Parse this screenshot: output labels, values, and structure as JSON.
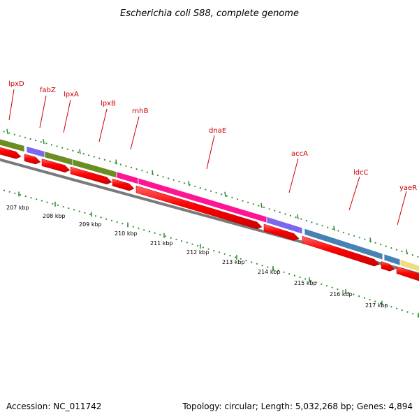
{
  "title": "Escherichia coli S88, complete genome",
  "accession": "Accession: NC_011742",
  "summary": "Topology: circular; Length: 5,032,268 bp; Genes: 4,894",
  "kbp_labels": [
    "207 kbp",
    "208 kbp",
    "209 kbp",
    "210 kbp",
    "211 kbp",
    "212 kbp",
    "213 kbp",
    "214 kbp",
    "215 kbp",
    "216 kbp",
    "217 kbp"
  ],
  "genes": [
    {
      "name": "lpxD",
      "color": "#6b8e23"
    },
    {
      "name": "fabZ",
      "color": "#7b68ee"
    },
    {
      "name": "lpxA",
      "color": "#6b8e23"
    },
    {
      "name": "lpxB",
      "color": "#6b8e23"
    },
    {
      "name": "rnhB",
      "color": "#ff1493"
    },
    {
      "name": "dnaE",
      "color": "#ff1493"
    },
    {
      "name": "accA",
      "color": "#7b68ee"
    },
    {
      "name": "ldcC",
      "color": "#4682b4"
    },
    {
      "name": "yaeR",
      "color": "#eedd82"
    }
  ],
  "colors": {
    "cds": "#ff0000",
    "tick": "#2e8b2e",
    "backbone": "#808080"
  }
}
